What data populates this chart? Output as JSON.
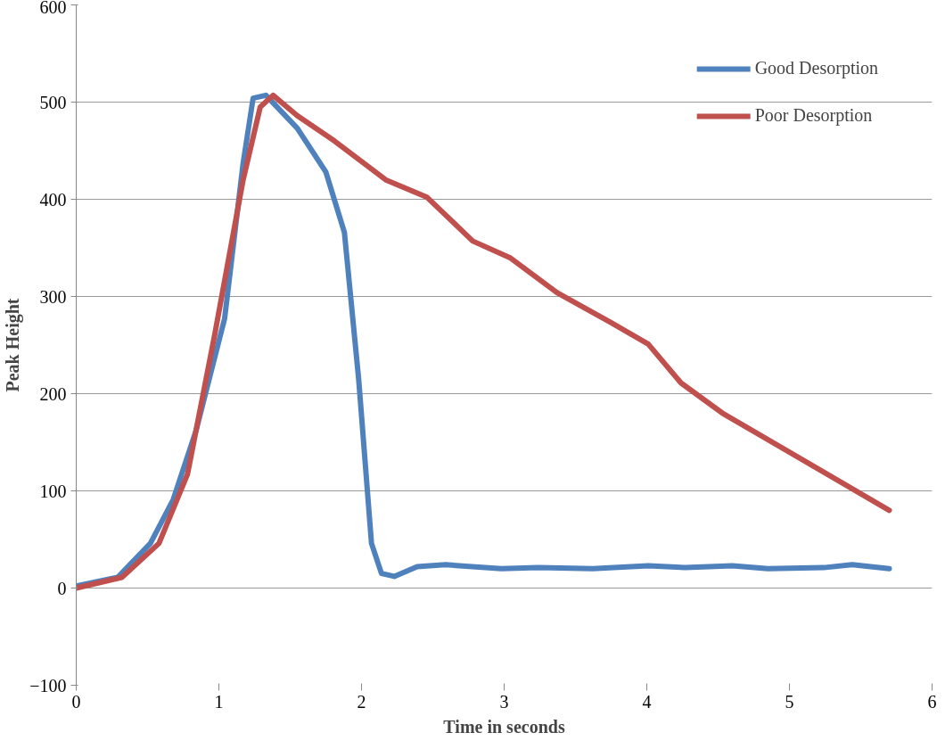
{
  "chart_data": {
    "type": "line",
    "xlabel": "Time in seconds",
    "ylabel": "Peak Height",
    "xlim": [
      0,
      6
    ],
    "xticks": [
      0,
      1,
      2,
      3,
      4,
      5,
      6
    ],
    "ylim": [
      -100,
      600
    ],
    "yticks": [
      -100,
      0,
      100,
      200,
      300,
      400,
      500,
      600
    ],
    "grid": "y",
    "legend": "top right",
    "line_style": "solid",
    "marker": "none",
    "series": [
      {
        "name": "Good Desorption",
        "color": "#4f81bd",
        "x": [
          0,
          0.29,
          0.52,
          0.68,
          0.84,
          1.04,
          1.17,
          1.24,
          1.33,
          1.55,
          1.75,
          1.88,
          1.98,
          2.07,
          2.14,
          2.23,
          2.39,
          2.59,
          2.98,
          3.24,
          3.62,
          4.01,
          4.27,
          4.6,
          4.85,
          5.24,
          5.44,
          5.7
        ],
        "values": [
          2,
          11,
          46,
          91,
          162,
          277,
          437,
          504,
          507,
          473,
          428,
          366,
          215,
          46,
          15,
          12,
          22,
          24,
          20,
          21,
          20,
          23,
          21,
          23,
          20,
          21,
          24,
          20
        ]
      },
      {
        "name": "Poor Desorption",
        "color": "#c0504d",
        "x": [
          0,
          0.32,
          0.58,
          0.78,
          0.97,
          1.17,
          1.29,
          1.38,
          1.55,
          1.81,
          2.17,
          2.46,
          2.78,
          3.04,
          3.37,
          3.75,
          4.01,
          4.24,
          4.53,
          5.7
        ],
        "values": [
          0,
          11,
          46,
          117,
          260,
          420,
          495,
          507,
          486,
          460,
          420,
          402,
          357,
          340,
          304,
          273,
          251,
          211,
          180,
          80
        ]
      }
    ]
  }
}
